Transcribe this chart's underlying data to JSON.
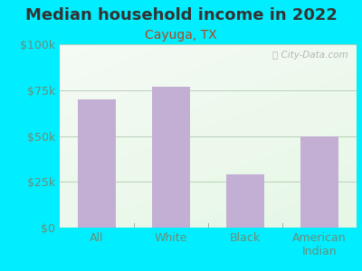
{
  "title": "Median household income in 2022",
  "subtitle": "Cayuga, TX",
  "categories": [
    "All",
    "White",
    "Black",
    "American\nIndian"
  ],
  "values": [
    70000,
    77000,
    29000,
    50000
  ],
  "bar_color": "#c4afd4",
  "background_outer": "#00eeff",
  "title_color": "#333333",
  "subtitle_color": "#b5451b",
  "tick_label_color": "#6b8c7a",
  "watermark": "City-Data.com",
  "ylim": [
    0,
    100000
  ],
  "yticks": [
    0,
    25000,
    50000,
    75000,
    100000
  ],
  "ytick_labels": [
    "$0",
    "$25k",
    "$50k",
    "$75k",
    "$100k"
  ],
  "title_fontsize": 13,
  "subtitle_fontsize": 10,
  "tick_fontsize": 9,
  "bar_width": 0.52
}
